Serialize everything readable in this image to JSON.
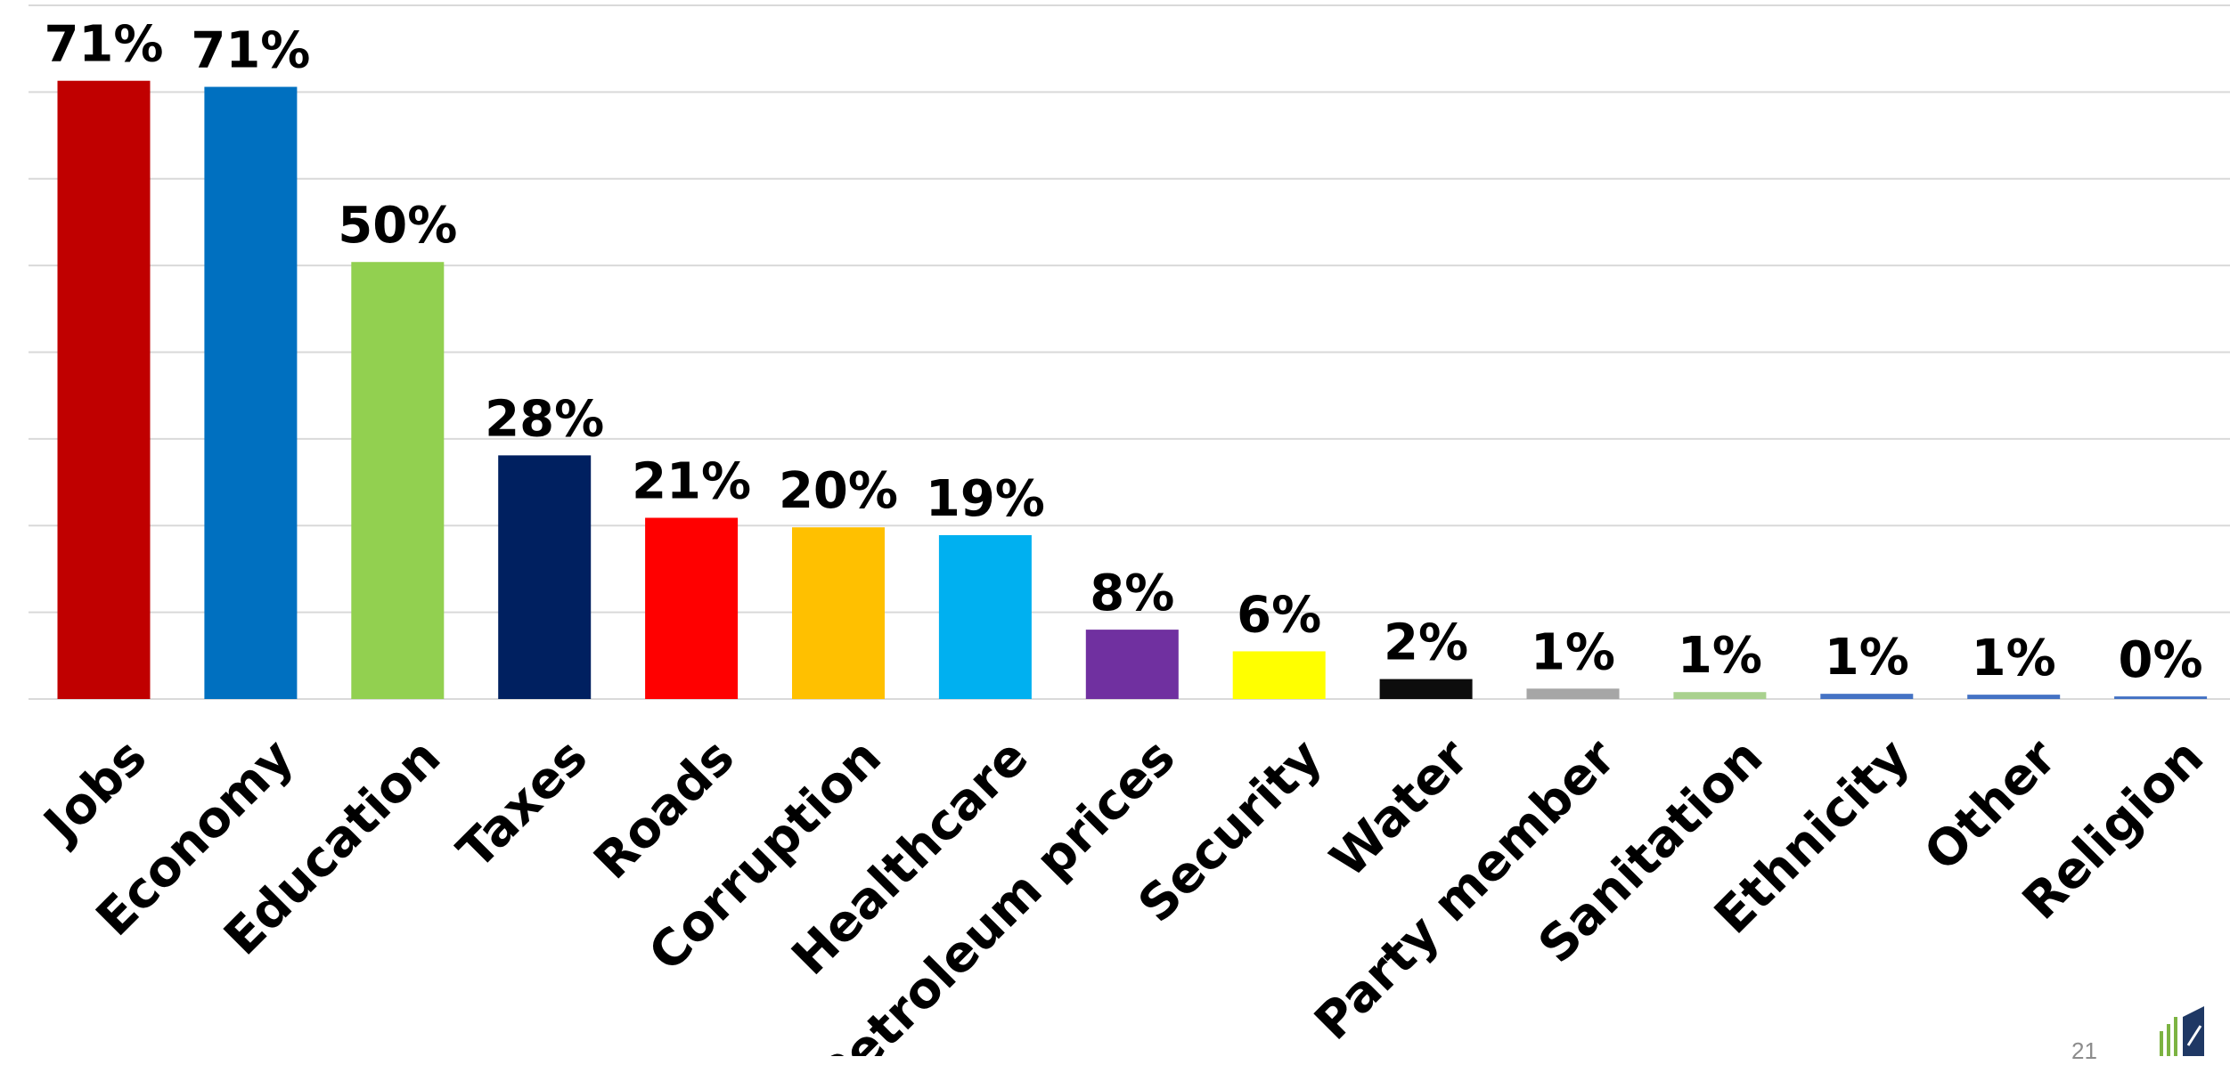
{
  "chart_data": {
    "type": "bar",
    "title": "",
    "xlabel": "",
    "ylabel": "",
    "ylim": [
      0,
      80
    ],
    "ytick_step": 10,
    "grid": true,
    "legend": "none",
    "categories": [
      "Jobs",
      "Economy",
      "Education",
      "Taxes",
      "Roads",
      "Corruption",
      "Healthcare",
      "Petroleum prices",
      "Security",
      "Water",
      "Party member",
      "Sanitation",
      "Ethnicity",
      "Other",
      "Religion"
    ],
    "values": [
      71.3,
      70.6,
      50.4,
      28.1,
      20.9,
      19.8,
      18.9,
      8.0,
      5.5,
      2.3,
      1.2,
      0.8,
      0.6,
      0.5,
      0.3
    ],
    "value_labels": [
      "71%",
      "71%",
      "50%",
      "28%",
      "21%",
      "20%",
      "19%",
      "8%",
      "6%",
      "2%",
      "1%",
      "1%",
      "1%",
      "1%",
      "0%"
    ],
    "colors": [
      "#c00000",
      "#0070c0",
      "#92d050",
      "#002060",
      "#ff0000",
      "#ffc000",
      "#00b0f0",
      "#7030a0",
      "#ffff00",
      "#0d0d0d",
      "#a6a6a6",
      "#a9d18e",
      "#4472c4",
      "#4472c4",
      "#4472c4"
    ]
  },
  "footer": {
    "page_number": "21",
    "logo_icon": "rising-bars-logo-icon"
  }
}
